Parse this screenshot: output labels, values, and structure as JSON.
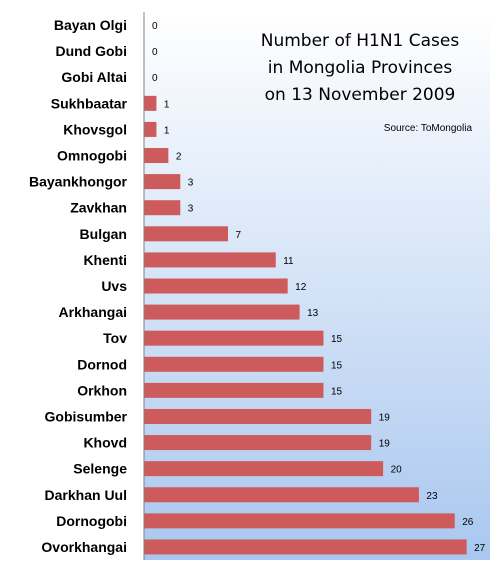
{
  "chart_data": {
    "type": "bar",
    "orientation": "horizontal",
    "title_lines": [
      "Number of H1N1 Cases",
      "in Mongolia Provinces",
      "on 13 November 2009"
    ],
    "source": "Source:  ToMongolia",
    "categories": [
      "Bayan Olgi",
      "Dund Gobi",
      "Gobi Altai",
      "Sukhbaatar",
      "Khovsgol",
      "Omnogobi",
      "Bayankhongor",
      "Zavkhan",
      "Bulgan",
      "Khenti",
      "Uvs",
      "Arkhangai",
      "Tov",
      "Dornod",
      "Orkhon",
      "Gobisumber",
      "Khovd",
      "Selenge",
      "Darkhan Uul",
      "Dornogobi",
      "Ovorkhangai"
    ],
    "values": [
      0,
      0,
      0,
      1,
      1,
      2,
      3,
      3,
      7,
      11,
      12,
      13,
      15,
      15,
      15,
      19,
      19,
      20,
      23,
      26,
      27
    ],
    "xlim": [
      0,
      29
    ],
    "colors": {
      "bar": "#cd5b5b",
      "plot_top": "#ffffff",
      "plot_bottom": "#a9c7ef",
      "axis": "#808080"
    }
  }
}
